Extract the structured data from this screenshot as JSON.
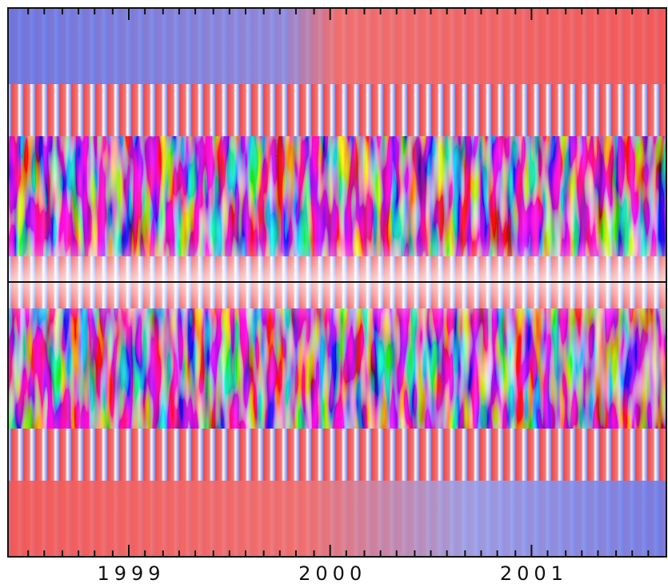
{
  "chart_data": {
    "type": "image-plot",
    "xlim": [
      1998.4,
      2001.67
    ],
    "xticks": [
      1999,
      2000,
      2001
    ],
    "xminorticks": [
      1998.5,
      1998.58,
      1998.67,
      1998.75,
      1998.83,
      1998.92,
      1999.08,
      1999.17,
      1999.25,
      1999.33,
      1999.42,
      1999.5,
      1999.58,
      1999.67,
      1999.75,
      1999.83,
      1999.92,
      2000.08,
      2000.17,
      2000.25,
      2000.33,
      2000.42,
      2000.5,
      2000.58,
      2000.67,
      2000.75,
      2000.83,
      2000.92,
      2001.08,
      2001.17,
      2001.25,
      2001.33,
      2001.42,
      2001.5,
      2001.58
    ]
  }
}
